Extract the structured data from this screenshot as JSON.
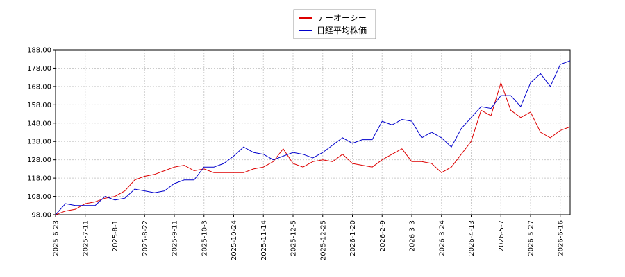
{
  "chart_data": {
    "type": "line",
    "x": [
      "2025-6-23",
      null,
      null,
      "2025-7-11",
      null,
      null,
      "2025-8-1",
      null,
      null,
      "2025-8-22",
      null,
      null,
      "2025-9-11",
      null,
      null,
      "2025-10-3",
      null,
      null,
      "2025-10-24",
      null,
      null,
      "2025-11-14",
      null,
      null,
      "2025-12-5",
      null,
      null,
      "2025-12-25",
      null,
      null,
      "2026-1-20",
      null,
      null,
      "2026-2-9",
      null,
      null,
      "2026-3-3",
      null,
      null,
      "2026-3-24",
      null,
      null,
      "2026-4-13",
      null,
      null,
      "2026-5-7",
      null,
      null,
      "2026-5-27",
      null,
      null,
      "2026-6-16",
      null
    ],
    "series": [
      {
        "name": "テーオーシー",
        "color": "#dd0000",
        "values": [
          98,
          100,
          101,
          104,
          105,
          107,
          108,
          111,
          117,
          119,
          120,
          122,
          124,
          125,
          122,
          123,
          121,
          121,
          121,
          121,
          123,
          124,
          127,
          134,
          126,
          124,
          127,
          128,
          127,
          131,
          126,
          125,
          124,
          128,
          131,
          134,
          127,
          127,
          126,
          121,
          124,
          131,
          138,
          155,
          152,
          170,
          155,
          151,
          154,
          143,
          140,
          144,
          146
        ]
      },
      {
        "name": "日経平均株価",
        "color": "#0000cc",
        "values": [
          98,
          104,
          103,
          103,
          103,
          108,
          106,
          107,
          112,
          111,
          110,
          111,
          115,
          117,
          117,
          124,
          124,
          126,
          130,
          135,
          132,
          131,
          128,
          130,
          132,
          131,
          129,
          132,
          136,
          140,
          137,
          139,
          139,
          149,
          147,
          150,
          149,
          140,
          143,
          140,
          135,
          145,
          151,
          157,
          156,
          163,
          163,
          157,
          170,
          175,
          168,
          180,
          182
        ]
      }
    ],
    "ylim": [
      98,
      188
    ],
    "yticks": [
      {
        "value": 98,
        "label": "98.00"
      },
      {
        "value": 108,
        "label": "108.00"
      },
      {
        "value": 118,
        "label": "118.00"
      },
      {
        "value": 128,
        "label": "128.00"
      },
      {
        "value": 138,
        "label": "138.00"
      },
      {
        "value": 148,
        "label": "148.00"
      },
      {
        "value": 158,
        "label": "158.00"
      },
      {
        "value": 168,
        "label": "168.00"
      },
      {
        "value": 178,
        "label": "178.00"
      },
      {
        "value": 188,
        "label": "188.00"
      }
    ],
    "grid": true,
    "legend": "top"
  }
}
